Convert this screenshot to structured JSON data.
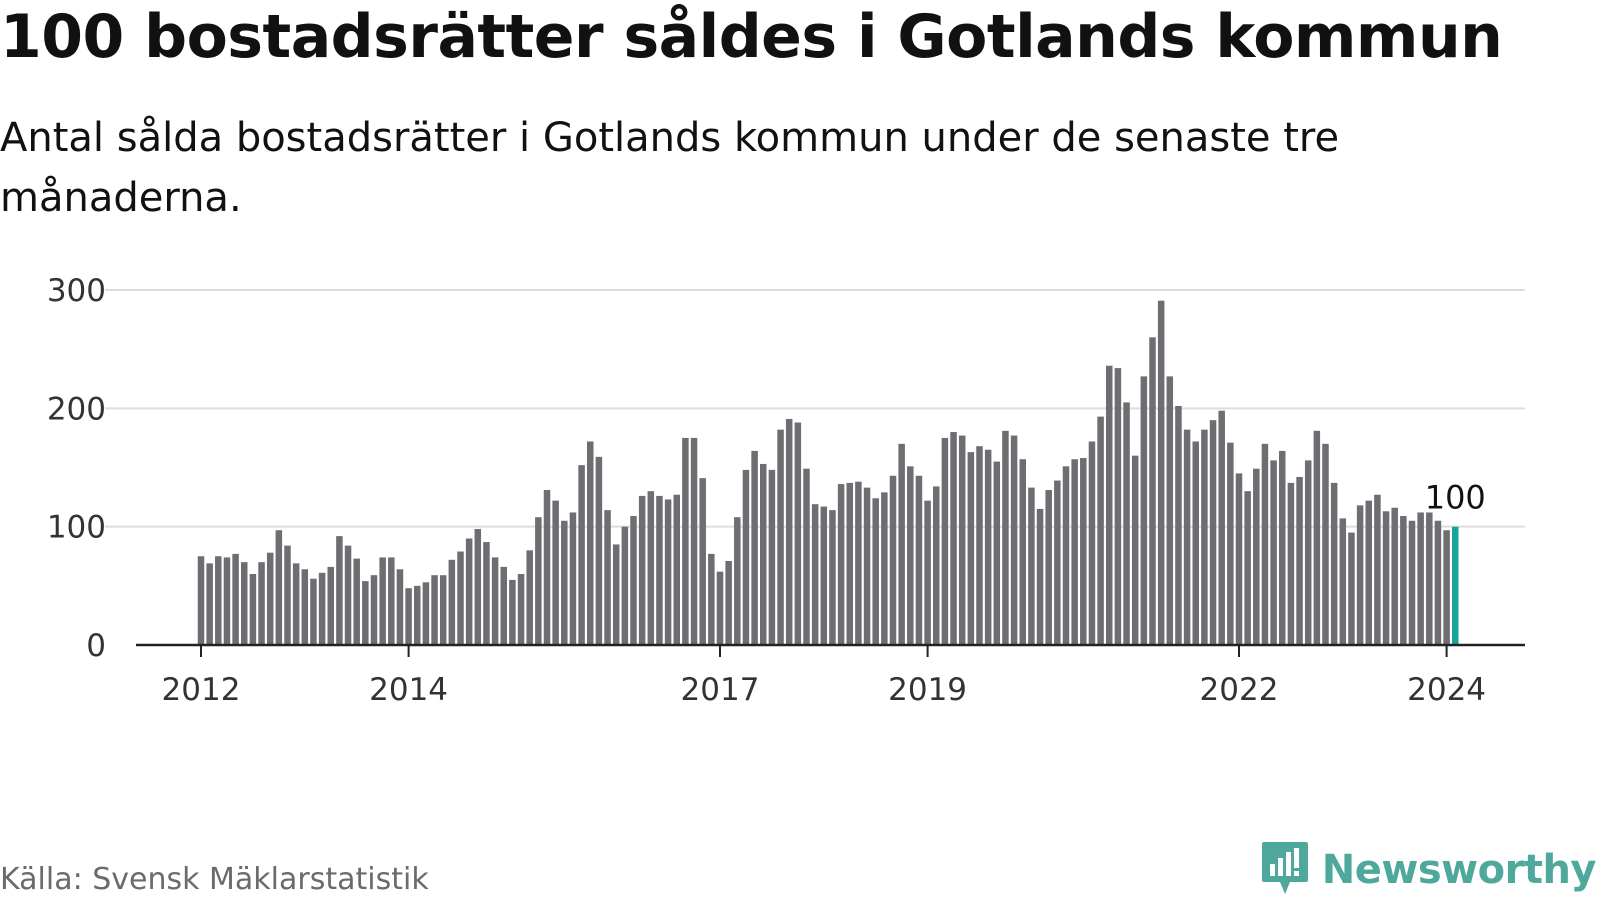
{
  "header": {
    "title": "100 bostadsrätter såldes i Gotlands kommun",
    "subtitle": "Antal sålda bostadsrätter i Gotlands kommun under de senaste tre månaderna."
  },
  "footer": {
    "source": "Källa: Svensk Mäklarstatistik",
    "brand": "Newsworthy",
    "brand_icon": "newsworthy-logo-icon"
  },
  "colors": {
    "bar": "#6e6d72",
    "highlight": "#1aa39a",
    "grid": "#dddddd",
    "axis": "#222222",
    "brand": "#4fa89c"
  },
  "chart_data": {
    "type": "bar",
    "title": "",
    "xlabel": "",
    "ylabel": "",
    "ylim": [
      0,
      300
    ],
    "yticks": [
      0,
      100,
      200,
      300
    ],
    "xtick_labels": [
      "2012",
      "2014",
      "2017",
      "2019",
      "2022",
      "2024"
    ],
    "grid": true,
    "first_period": "2012-01",
    "last_period": "2024-02",
    "highlight_label": "100",
    "values": [
      75,
      69,
      75,
      74,
      77,
      70,
      60,
      70,
      78,
      97,
      84,
      69,
      64,
      56,
      61,
      66,
      92,
      84,
      73,
      54,
      59,
      74,
      74,
      64,
      48,
      50,
      53,
      59,
      59,
      72,
      79,
      90,
      98,
      87,
      74,
      66,
      55,
      60,
      80,
      108,
      131,
      122,
      105,
      112,
      152,
      172,
      159,
      114,
      85,
      100,
      109,
      126,
      130,
      126,
      123,
      127,
      175,
      175,
      141,
      77,
      62,
      71,
      108,
      148,
      164,
      153,
      148,
      182,
      191,
      188,
      149,
      119,
      117,
      114,
      136,
      137,
      138,
      133,
      124,
      129,
      143,
      170,
      151,
      143,
      122,
      134,
      175,
      180,
      177,
      163,
      168,
      165,
      155,
      181,
      177,
      157,
      133,
      115,
      131,
      139,
      151,
      157,
      158,
      172,
      193,
      236,
      234,
      205,
      160,
      227,
      260,
      291,
      227,
      202,
      182,
      172,
      182,
      190,
      198,
      171,
      145,
      130,
      149,
      170,
      156,
      164,
      137,
      142,
      156,
      181,
      170,
      137,
      107,
      95,
      118,
      122,
      127,
      113,
      116,
      109,
      105,
      112,
      112,
      105,
      97,
      100
    ]
  }
}
